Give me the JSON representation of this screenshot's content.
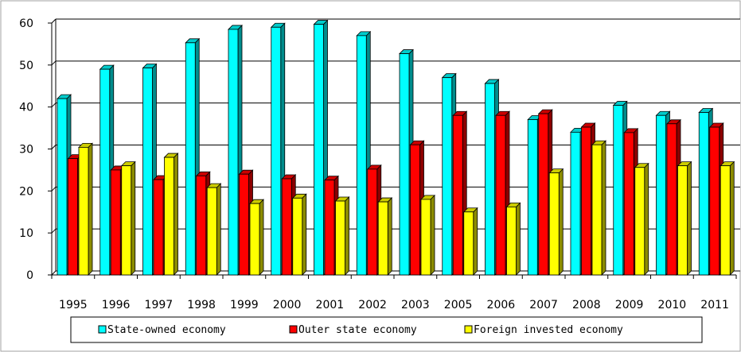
{
  "chart_data": {
    "type": "bar",
    "title": "",
    "xlabel": "",
    "ylabel": "",
    "ylim": [
      0,
      60
    ],
    "yticks": [
      0,
      10,
      20,
      30,
      40,
      50,
      60
    ],
    "grid": true,
    "legend_position": "bottom",
    "style": "3d",
    "categories": [
      "1995",
      "1996",
      "1997",
      "1998",
      "1999",
      "2000",
      "2001",
      "2002",
      "2003",
      "2005",
      "2006",
      "2007",
      "2008",
      "2009",
      "2010",
      "2011"
    ],
    "series": [
      {
        "name": "State-owned economy",
        "color": "#00ffff",
        "values": [
          42,
          49,
          49.3,
          55.3,
          58.5,
          59,
          59.7,
          57,
          52.7,
          47,
          45.6,
          37,
          34,
          40.4,
          38,
          38.7
        ]
      },
      {
        "name": "Outer state economy",
        "color": "#ff0000",
        "values": [
          27.7,
          25,
          22.7,
          23.6,
          24,
          22.9,
          22.6,
          25.2,
          31,
          38,
          38,
          38.4,
          35.2,
          33.9,
          36,
          35.2
        ]
      },
      {
        "name": "Foreign invested economy",
        "color": "#ffff00",
        "values": [
          30.4,
          26,
          28,
          20.8,
          17,
          18.3,
          17.6,
          17.4,
          18,
          15,
          16.2,
          24.3,
          31,
          25.6,
          26,
          26
        ]
      }
    ]
  }
}
